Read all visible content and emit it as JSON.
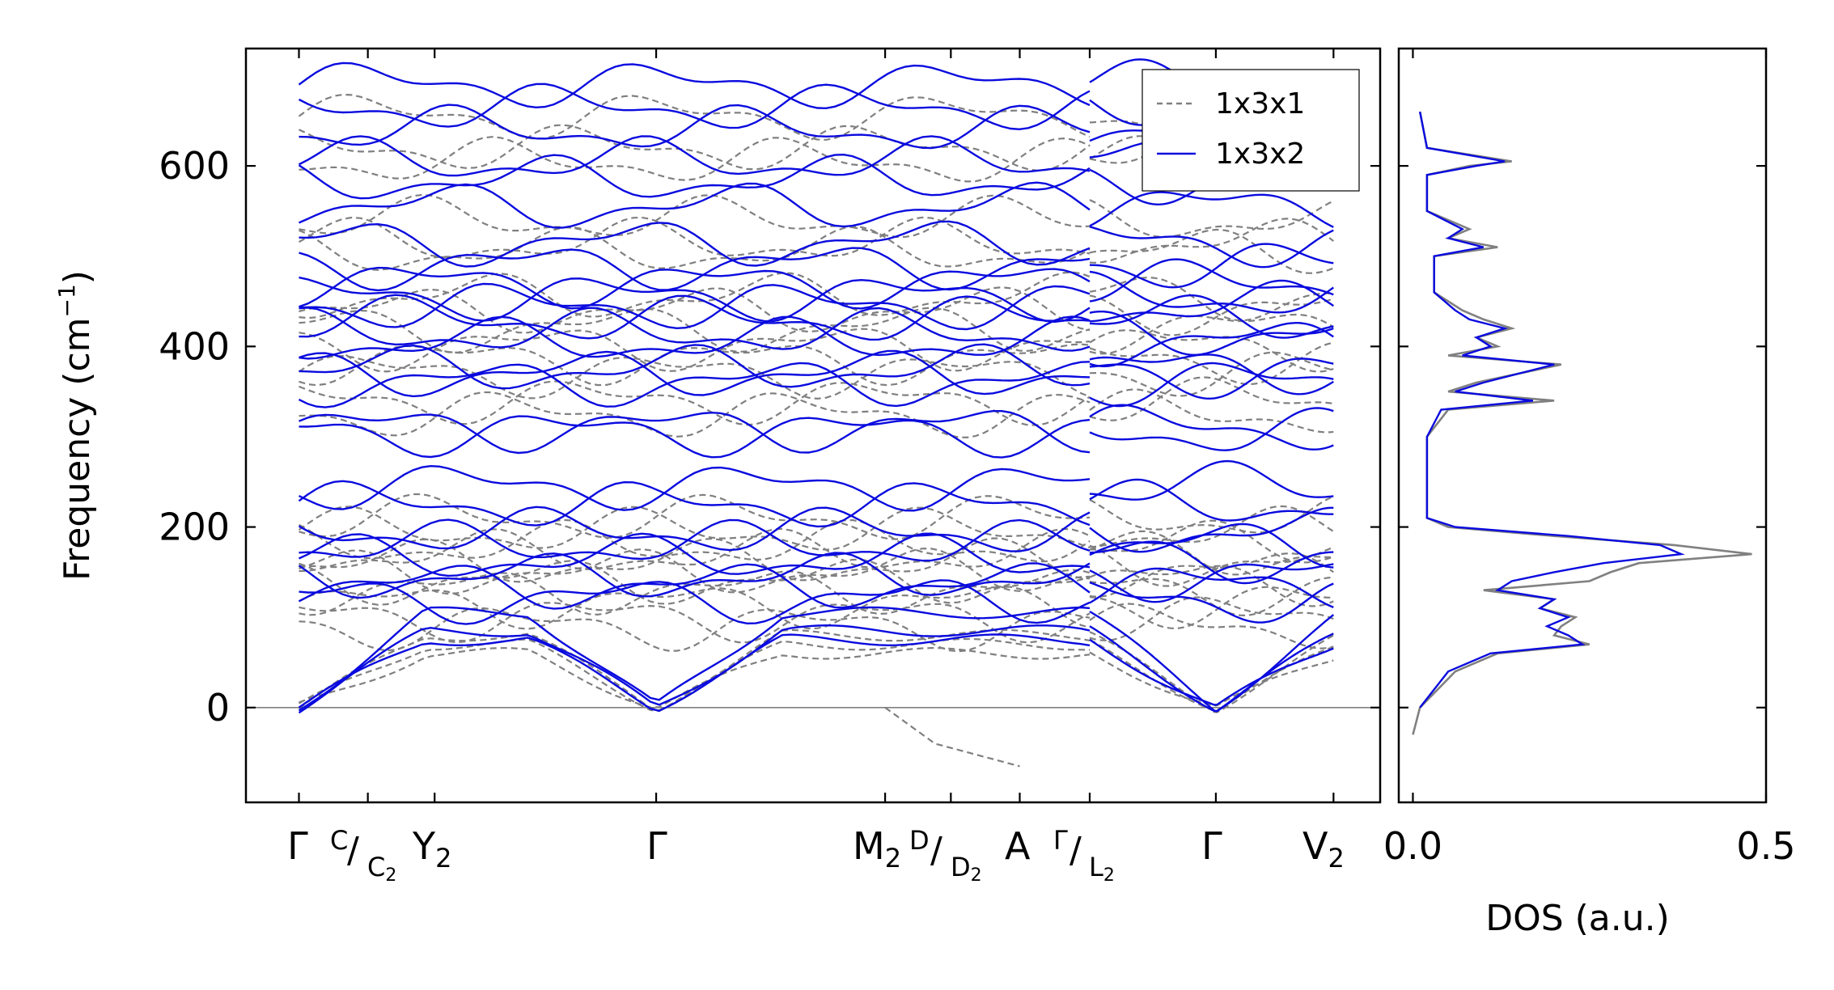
{
  "chart_data": [
    {
      "type": "line",
      "ylabel": "Frequency (cm",
      "ylabel_sup": "−1",
      "ylabel_tail": ")",
      "ylim": [
        -105,
        730
      ],
      "yticks": [
        0,
        200,
        400,
        600
      ],
      "xlim": [
        -0.05,
        1.02
      ],
      "kpoints": [
        {
          "x": 0.0,
          "main": "Γ"
        },
        {
          "x": 0.065,
          "main": "",
          "sup": "C",
          "sub": "C2",
          "subsub": "2"
        },
        {
          "x": 0.128,
          "main": "Y",
          "sub": "2"
        },
        {
          "x": 0.337,
          "main": "Γ"
        },
        {
          "x": 0.553,
          "main": "M",
          "sub": "2"
        },
        {
          "x": 0.615,
          "main": "",
          "sup": "D",
          "sub": "D2",
          "subsub": "2"
        },
        {
          "x": 0.68,
          "main": "A"
        },
        {
          "x": 0.746,
          "main": "",
          "sup": "Γ",
          "sub": "L2",
          "subsub": "2"
        },
        {
          "x": 0.865,
          "main": "Γ"
        },
        {
          "x": 0.976,
          "main": "V",
          "sub": "2"
        }
      ],
      "tick_labels": {
        "G1": "Γ",
        "C": "C",
        "C2": "C",
        "Y2": "Y",
        "G2": "Γ",
        "M2": "M",
        "D": "D",
        "D2": "D",
        "A": "A",
        "Gs": "Γ",
        "L2": "L",
        "G3": "Γ",
        "V2": "V",
        "sub2": "2"
      },
      "legend": {
        "position": "top-right",
        "entries": [
          "1x3x1",
          "1x3x2"
        ]
      },
      "series": [
        {
          "name": "1x3x1",
          "color": "#808080",
          "style": "dashed"
        },
        {
          "name": "1x3x2",
          "color": "#0a0adf",
          "style": "solid"
        }
      ],
      "segments": [
        [
          0.0,
          0.746
        ],
        [
          0.746,
          0.976
        ]
      ],
      "approx_band_levels_1x3x2": [
        690,
        665,
        640,
        605,
        585,
        555,
        515,
        490,
        470,
        455,
        445,
        430,
        415,
        405,
        375,
        370,
        360,
        310,
        305,
        245,
        225,
        195,
        180,
        165,
        145,
        135,
        120,
        105,
        85,
        75
      ],
      "approx_band_levels_1x3x1": [
        655,
        620,
        605,
        540,
        515,
        505,
        455,
        440,
        420,
        400,
        385,
        370,
        340,
        325,
        210,
        195,
        180,
        170,
        160,
        150,
        140,
        130,
        115,
        100,
        90,
        80,
        70,
        60
      ],
      "imaginary_mode_1x3x1": {
        "x": [
          0.553,
          0.6,
          0.68
        ],
        "y": [
          0,
          -40,
          -65
        ]
      }
    },
    {
      "type": "line",
      "xlabel": "DOS (a.u.)",
      "xlim": [
        -0.02,
        0.5
      ],
      "xticks": [
        "0.0",
        "0.5"
      ],
      "ylim": [
        -105,
        730
      ],
      "series": [
        {
          "name": "1x3x1",
          "color": "#808080",
          "y": [
            -30,
            0,
            40,
            60,
            70,
            80,
            90,
            100,
            110,
            120,
            130,
            140,
            150,
            160,
            170,
            180,
            190,
            200,
            210,
            240,
            300,
            330,
            340,
            350,
            360,
            380,
            390,
            400,
            410,
            420,
            430,
            440,
            460,
            500,
            510,
            520,
            530,
            550,
            590,
            600,
            605,
            620,
            660
          ],
          "dos": [
            0.0,
            0.01,
            0.06,
            0.12,
            0.25,
            0.2,
            0.21,
            0.23,
            0.18,
            0.2,
            0.1,
            0.25,
            0.28,
            0.32,
            0.48,
            0.37,
            0.2,
            0.05,
            0.02,
            0.02,
            0.02,
            0.05,
            0.2,
            0.05,
            0.09,
            0.21,
            0.05,
            0.12,
            0.09,
            0.14,
            0.1,
            0.07,
            0.03,
            0.03,
            0.12,
            0.05,
            0.08,
            0.02,
            0.02,
            0.08,
            0.14,
            0.02,
            0.01
          ]
        },
        {
          "name": "1x3x2",
          "color": "#0a0adf",
          "y": [
            0,
            40,
            60,
            70,
            80,
            90,
            100,
            110,
            120,
            130,
            140,
            150,
            160,
            170,
            180,
            190,
            200,
            210,
            240,
            300,
            330,
            340,
            350,
            360,
            380,
            390,
            400,
            410,
            420,
            430,
            440,
            460,
            500,
            510,
            520,
            530,
            550,
            590,
            600,
            605,
            620,
            660
          ],
          "dos": [
            0.01,
            0.05,
            0.11,
            0.24,
            0.22,
            0.19,
            0.22,
            0.18,
            0.2,
            0.12,
            0.14,
            0.2,
            0.27,
            0.38,
            0.35,
            0.22,
            0.06,
            0.02,
            0.02,
            0.02,
            0.04,
            0.17,
            0.06,
            0.1,
            0.2,
            0.07,
            0.11,
            0.09,
            0.13,
            0.08,
            0.06,
            0.03,
            0.03,
            0.1,
            0.05,
            0.07,
            0.02,
            0.02,
            0.09,
            0.13,
            0.02,
            0.01
          ]
        }
      ]
    }
  ]
}
